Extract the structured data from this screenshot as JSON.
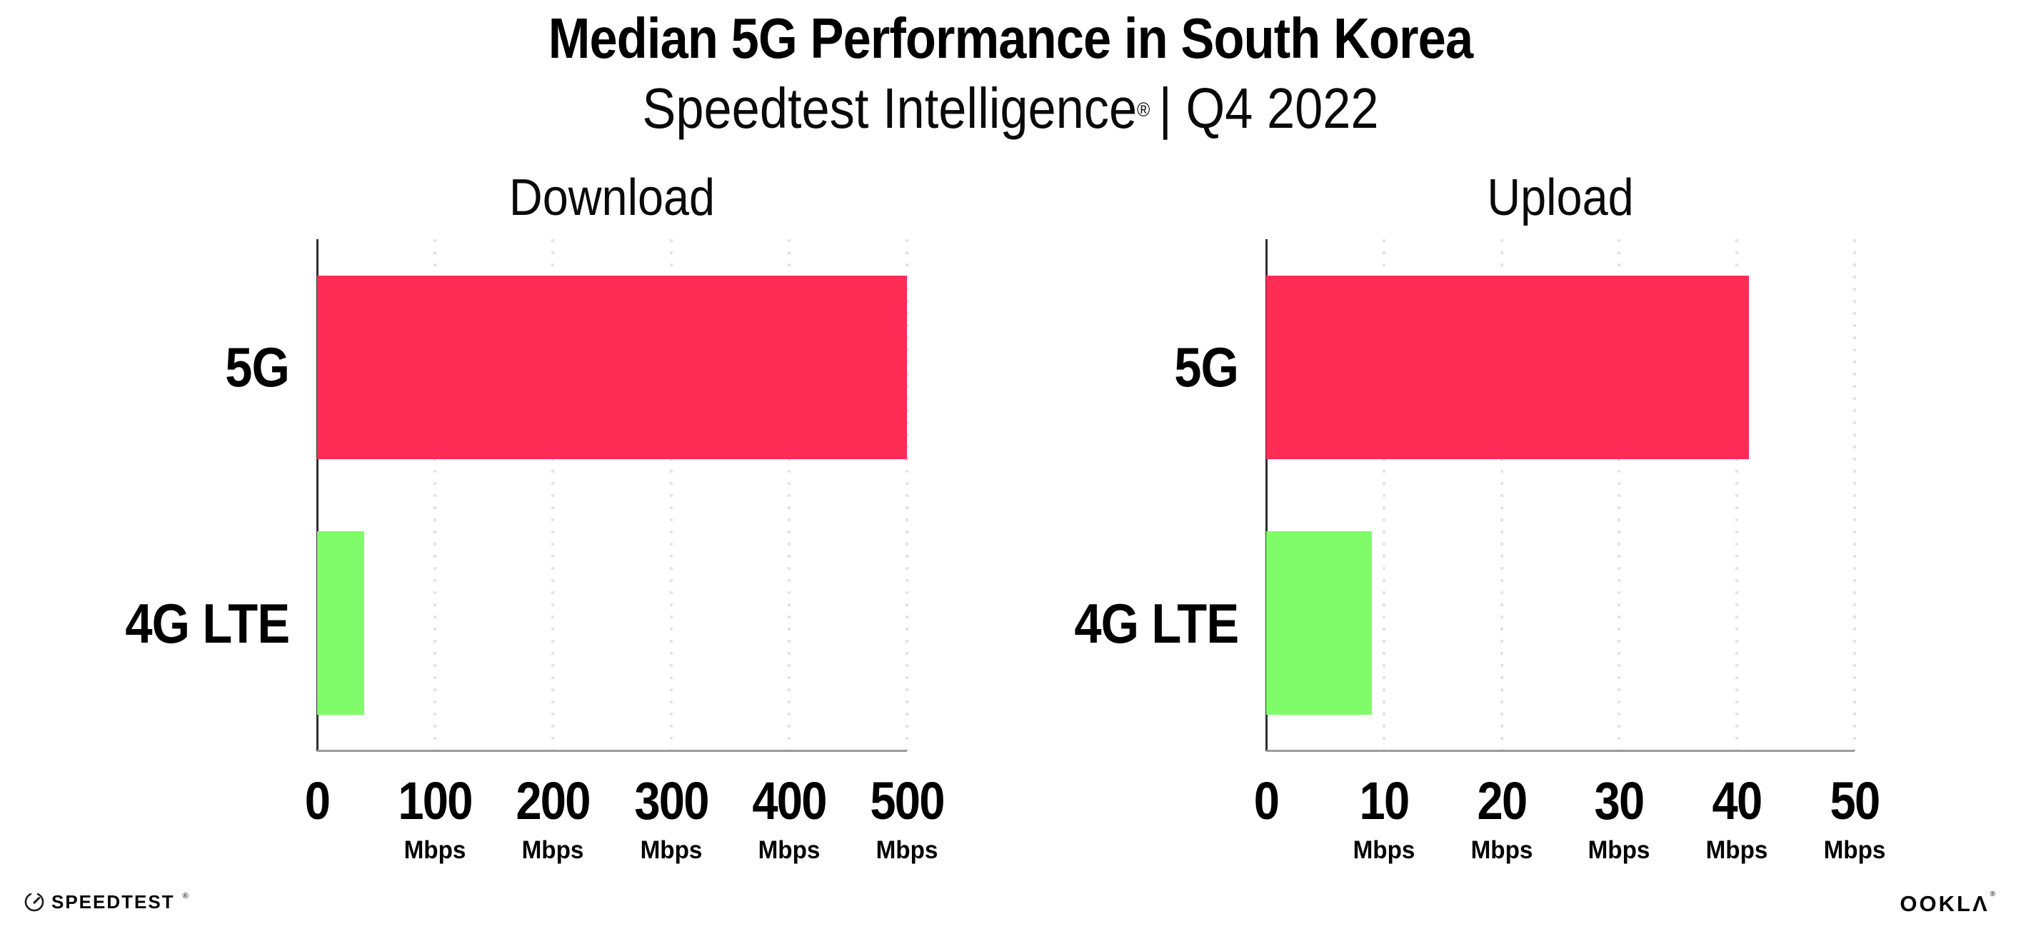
{
  "page": {
    "title": "Median 5G Performance in South Korea",
    "subtitle_brand": "Speedtest Intelligence",
    "subtitle_reg": "®",
    "subtitle_rest": "| Q4 2022"
  },
  "footer": {
    "speedtest_label": "SPEEDTEST",
    "speedtest_reg": "®",
    "speedtest_icon": "speedtest-gauge-icon",
    "ookla_label": "OOKLΛ",
    "ookla_reg": "®"
  },
  "colors": {
    "background": "#FFFFFF",
    "text": "#000000",
    "bar_5g": "#FF2D55",
    "bar_4g_lte": "#80FB69",
    "gridline": "#E2E2EC",
    "y_axis": "#2E2E34",
    "x_axis": "#9B9B9B"
  },
  "chart_data": [
    {
      "type": "bar",
      "orientation": "horizontal",
      "title": "Download",
      "categories": [
        "5G",
        "4G LTE"
      ],
      "values": [
        500,
        40
      ],
      "unit": "Mbps",
      "xlim": [
        0,
        500
      ],
      "xticks": [
        0,
        100,
        200,
        300,
        400,
        500
      ],
      "xtick_units": [
        "",
        "Mbps",
        "Mbps",
        "Mbps",
        "Mbps",
        "Mbps"
      ],
      "bar_colors": [
        "#FF2D55",
        "#80FB69"
      ],
      "grid": "dotted-vertical",
      "legend": "none"
    },
    {
      "type": "bar",
      "orientation": "horizontal",
      "title": "Upload",
      "categories": [
        "5G",
        "4G LTE"
      ],
      "values": [
        41,
        9
      ],
      "unit": "Mbps",
      "xlim": [
        0,
        50
      ],
      "xticks": [
        0,
        10,
        20,
        30,
        40,
        50
      ],
      "xtick_units": [
        "",
        "Mbps",
        "Mbps",
        "Mbps",
        "Mbps",
        "Mbps"
      ],
      "bar_colors": [
        "#FF2D55",
        "#80FB69"
      ],
      "grid": "dotted-vertical",
      "legend": "none"
    }
  ]
}
